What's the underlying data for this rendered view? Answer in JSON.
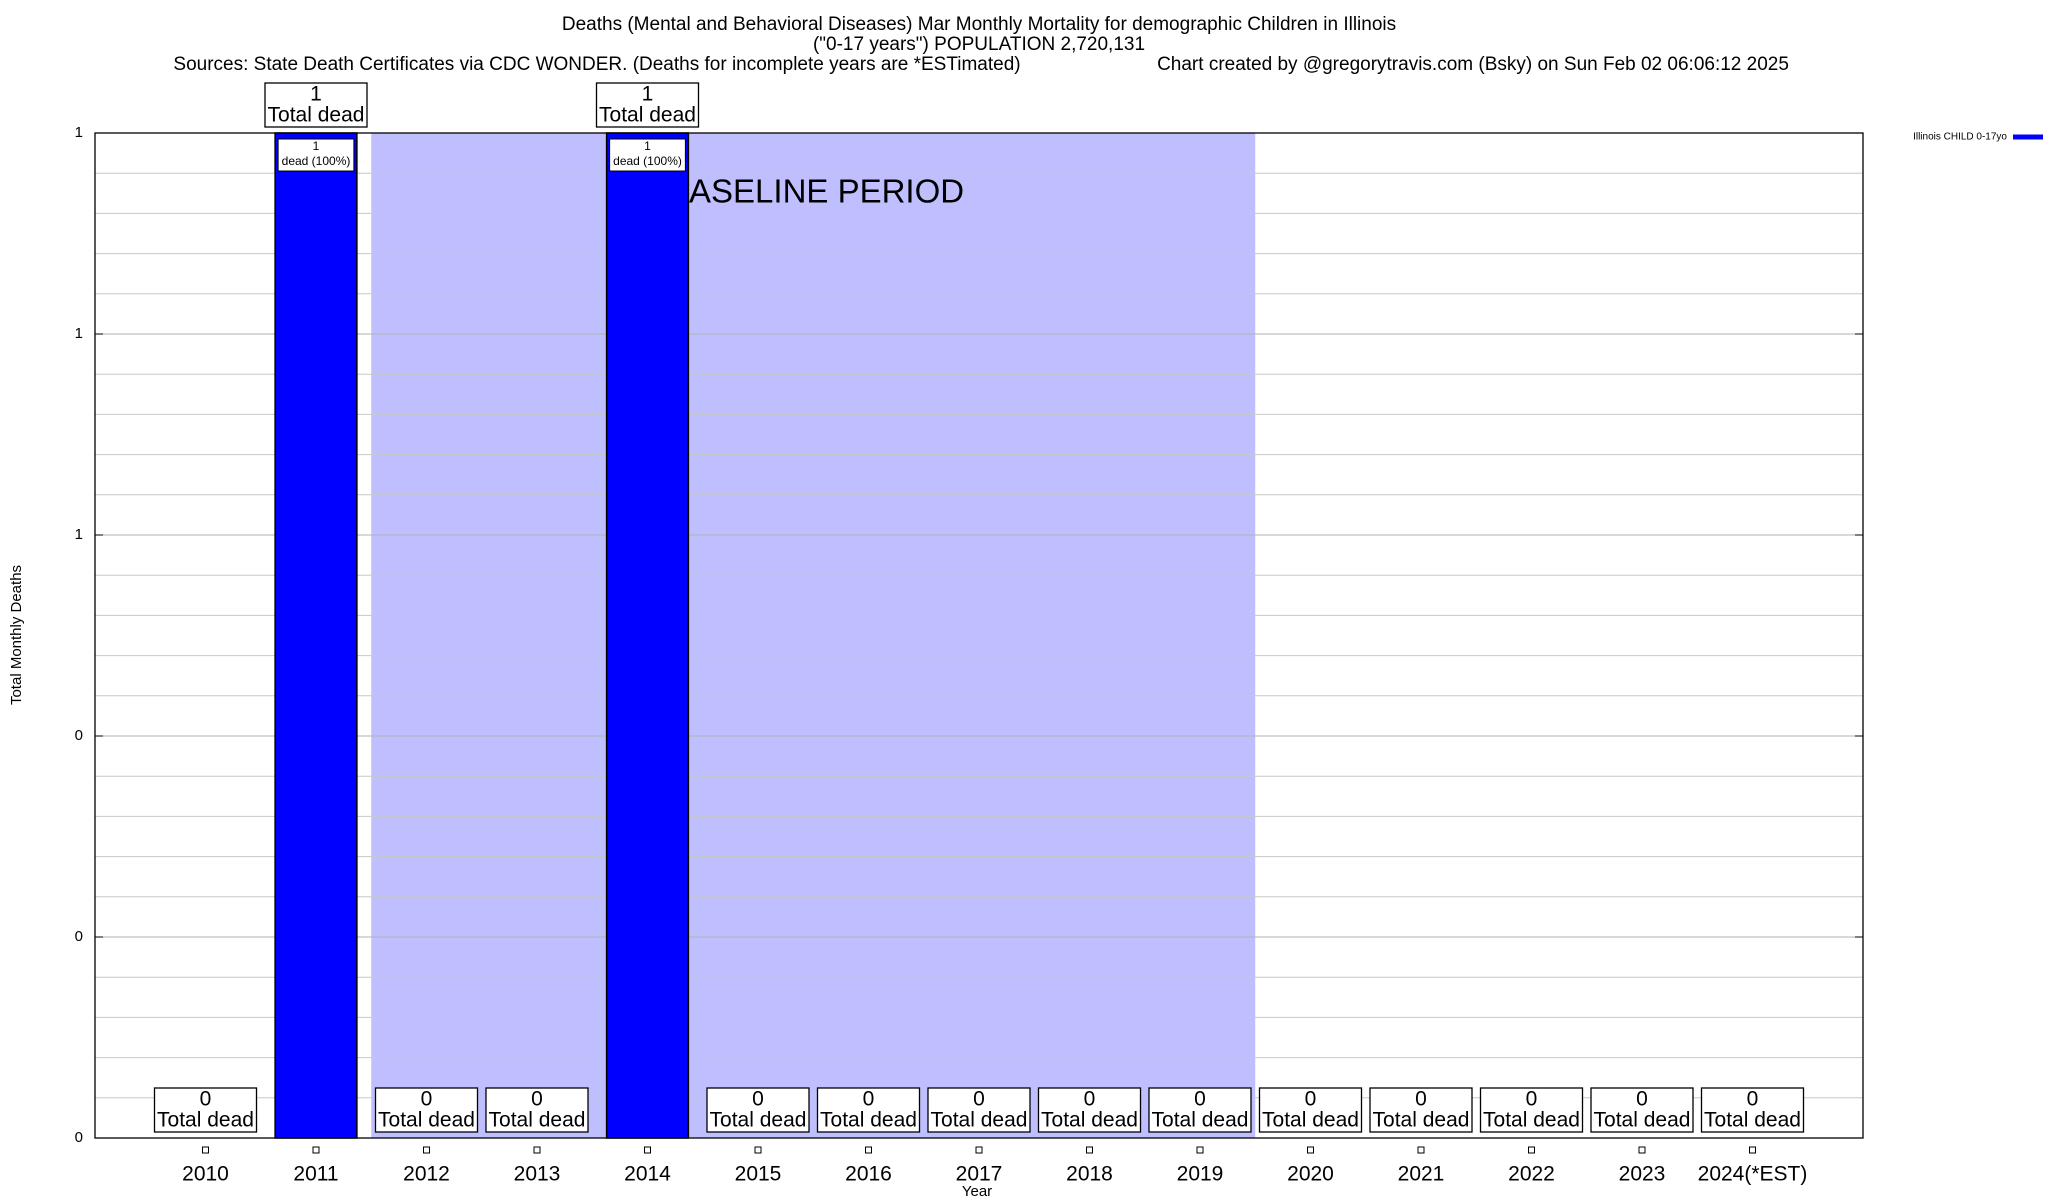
{
  "chart_data": {
    "type": "bar",
    "title": "Deaths (Mental and Behavioral Diseases) Mar Monthly Mortality for demographic Children in Illinois",
    "subtitle": "(\"0-17 years\") POPULATION 2,720,131",
    "sources": "Sources: State Death Certificates via CDC WONDER. (Deaths for incomplete years are *ESTimated)",
    "credit": "Chart created by @gregorytravis.com (Bsky) on Sun Feb 02 06:06:12 2025",
    "x_label": "Year",
    "y_label": "Total Monthly Deaths",
    "categories": [
      "2010",
      "2011",
      "2012",
      "2013",
      "2014",
      "2015",
      "2016",
      "2017",
      "2018",
      "2019",
      "2020",
      "2021",
      "2022",
      "2023",
      "2024(*EST)"
    ],
    "series": [
      {
        "name": "Illinois CHILD 0-17yo",
        "color": "#0000ff",
        "values": [
          0,
          1,
          0,
          0,
          1,
          0,
          0,
          0,
          0,
          0,
          0,
          0,
          0,
          0,
          0
        ]
      }
    ],
    "total_label": "Total dead",
    "inner_labels": [
      null,
      "dead (100%)",
      null,
      null,
      "dead (100%)",
      null,
      null,
      null,
      null,
      null,
      null,
      null,
      null,
      null,
      null
    ],
    "baseline": {
      "label": "BASELINE PERIOD",
      "start": "2012",
      "end": "2019",
      "color": "#bfbfff"
    },
    "ylim": [
      0,
      1
    ],
    "yticks": [
      0,
      {
        "value": 0.2,
        "label": "0"
      },
      {
        "value": 0.4,
        "label": "0"
      },
      {
        "value": 0.6,
        "label": "1"
      },
      {
        "value": 0.8,
        "label": "1"
      },
      1
    ],
    "yminorticks": [
      0.04,
      0.08,
      0.12,
      0.16,
      0.24,
      0.28,
      0.32,
      0.36,
      0.44,
      0.48,
      0.52,
      0.56,
      0.64,
      0.68,
      0.72,
      0.76,
      0.84,
      0.88,
      0.92,
      0.96
    ],
    "grid": true,
    "legend": "top-right"
  }
}
